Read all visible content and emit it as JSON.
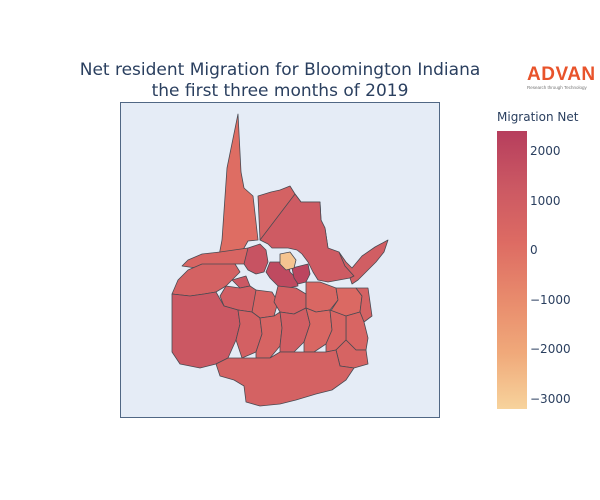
{
  "title_line1": "Net resident Migration for Bloomington Indiana",
  "title_line2": "the first three months of 2019",
  "logo": {
    "word": "ADVAN",
    "tagline": "Research through Technology",
    "color": "#e8532b"
  },
  "colorbar": {
    "title": "Migration Net",
    "min": -3200,
    "max": 2400,
    "colors": [
      "#f7d39c",
      "#f0a97a",
      "#e88a6c",
      "#dd6b63",
      "#cb5863",
      "#b63e5d"
    ],
    "ticks": [
      {
        "value": 2000,
        "label": "2000"
      },
      {
        "value": 1000,
        "label": "1000"
      },
      {
        "value": 0,
        "label": "0"
      },
      {
        "value": -1000,
        "label": "−1000"
      },
      {
        "value": -2000,
        "label": "−2000"
      },
      {
        "value": -3000,
        "label": "−3000"
      }
    ]
  },
  "map": {
    "background": "#e5ecf6",
    "frame_color": "#506784",
    "border_color": "#4a4a52"
  },
  "chart_data": {
    "type": "choropleth",
    "region": "Bloomington, Indiana",
    "value_label": "Migration Net",
    "color_range": [
      -3200,
      2400
    ],
    "regions": [
      {
        "id": "north-spike",
        "value": 100
      },
      {
        "id": "north-center",
        "value": 700
      },
      {
        "id": "northeast",
        "value": 1100
      },
      {
        "id": "east-arm",
        "value": 900
      },
      {
        "id": "west-upper",
        "value": 500
      },
      {
        "id": "west-mid",
        "value": 700
      },
      {
        "id": "downtown-a",
        "value": 1500
      },
      {
        "id": "downtown-b",
        "value": 1900
      },
      {
        "id": "downtown-c",
        "value": 2100
      },
      {
        "id": "campus-light",
        "value": -2800
      },
      {
        "id": "north-small",
        "value": 1300
      },
      {
        "id": "center-1",
        "value": 900
      },
      {
        "id": "center-2",
        "value": 600
      },
      {
        "id": "center-3",
        "value": 800
      },
      {
        "id": "center-4",
        "value": 400
      },
      {
        "id": "center-5",
        "value": 300
      },
      {
        "id": "east-mid",
        "value": 700
      },
      {
        "id": "east-lower",
        "value": 500
      },
      {
        "id": "southwest-big",
        "value": 1300
      },
      {
        "id": "south-1",
        "value": 800
      },
      {
        "id": "south-2",
        "value": 600
      },
      {
        "id": "south-3",
        "value": 900
      },
      {
        "id": "south-4",
        "value": 400
      },
      {
        "id": "south-5",
        "value": 500
      },
      {
        "id": "southeast",
        "value": 600
      },
      {
        "id": "far-south",
        "value": 700
      }
    ]
  }
}
